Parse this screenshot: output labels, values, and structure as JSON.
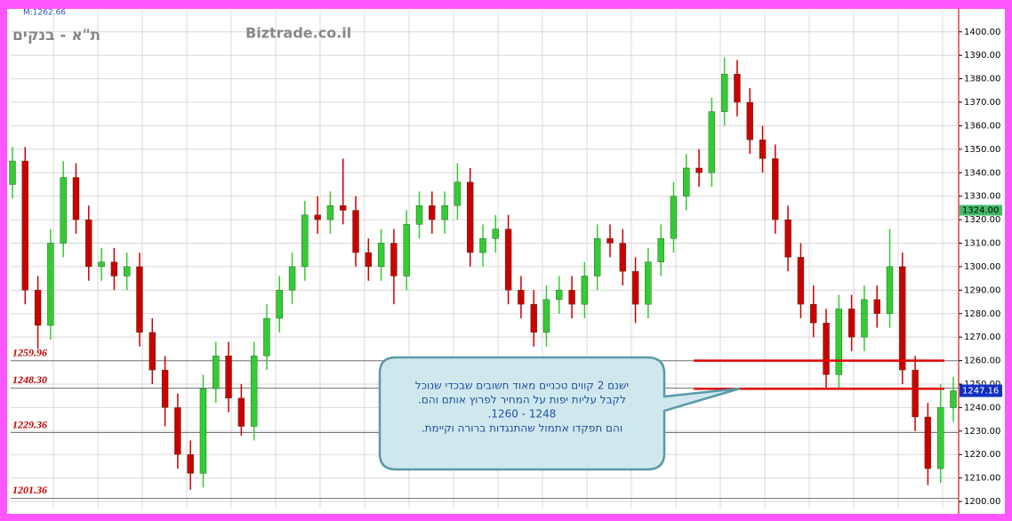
{
  "chart_data": {
    "type": "candlestick",
    "title": "ת\"א - בנקים",
    "source": "Biztrade.co.il",
    "max_label": "M:1262.66",
    "open": [
      1335,
      1345,
      1290,
      1275,
      1310,
      1338,
      1320,
      1300,
      1302,
      1296,
      1300,
      1272,
      1256,
      1240,
      1220,
      1212,
      1248,
      1262,
      1244,
      1232,
      1262,
      1278,
      1290,
      1300,
      1322,
      1320,
      1326,
      1324,
      1306,
      1300,
      1310,
      1296,
      1318,
      1326,
      1320,
      1326,
      1336,
      1306,
      1312,
      1316,
      1290,
      1284,
      1272,
      1286,
      1290,
      1284,
      1296,
      1312,
      1310,
      1298,
      1284,
      1302,
      1312,
      1330,
      1342,
      1340,
      1366,
      1382,
      1370,
      1354,
      1346,
      1320,
      1304,
      1284,
      1276,
      1254,
      1282,
      1270,
      1286,
      1280,
      1300,
      1256,
      1236,
      1214,
      1240
    ],
    "high": [
      1351,
      1351,
      1296,
      1316,
      1345,
      1344,
      1326,
      1308,
      1308,
      1306,
      1306,
      1278,
      1262,
      1246,
      1226,
      1254,
      1268,
      1268,
      1250,
      1268,
      1284,
      1296,
      1306,
      1328,
      1330,
      1332,
      1346,
      1330,
      1312,
      1316,
      1316,
      1324,
      1332,
      1332,
      1332,
      1344,
      1342,
      1318,
      1322,
      1322,
      1296,
      1290,
      1292,
      1296,
      1296,
      1302,
      1318,
      1318,
      1316,
      1304,
      1308,
      1318,
      1336,
      1348,
      1350,
      1372,
      1389,
      1388,
      1376,
      1360,
      1352,
      1326,
      1310,
      1292,
      1282,
      1288,
      1288,
      1292,
      1292,
      1316,
      1306,
      1262,
      1242,
      1250,
      1253
    ],
    "low": [
      1329,
      1284,
      1265,
      1269,
      1304,
      1314,
      1294,
      1294,
      1290,
      1290,
      1266,
      1250,
      1232,
      1214,
      1205,
      1206,
      1242,
      1238,
      1228,
      1226,
      1256,
      1272,
      1284,
      1294,
      1314,
      1314,
      1318,
      1300,
      1294,
      1294,
      1284,
      1290,
      1312,
      1314,
      1314,
      1320,
      1300,
      1300,
      1306,
      1284,
      1278,
      1266,
      1266,
      1280,
      1278,
      1278,
      1290,
      1304,
      1292,
      1276,
      1278,
      1296,
      1306,
      1324,
      1334,
      1334,
      1360,
      1364,
      1348,
      1340,
      1314,
      1298,
      1278,
      1270,
      1248,
      1248,
      1264,
      1264,
      1274,
      1274,
      1250,
      1230,
      1207,
      1208,
      1234
    ],
    "close": [
      1345,
      1290,
      1275,
      1310,
      1338,
      1320,
      1300,
      1302,
      1296,
      1300,
      1272,
      1256,
      1240,
      1220,
      1212,
      1248,
      1262,
      1244,
      1232,
      1262,
      1278,
      1290,
      1300,
      1322,
      1320,
      1326,
      1324,
      1306,
      1300,
      1310,
      1296,
      1318,
      1326,
      1320,
      1326,
      1336,
      1306,
      1312,
      1316,
      1290,
      1284,
      1272,
      1286,
      1290,
      1284,
      1296,
      1312,
      1310,
      1298,
      1284,
      1302,
      1312,
      1330,
      1342,
      1340,
      1366,
      1382,
      1370,
      1354,
      1346,
      1320,
      1304,
      1284,
      1276,
      1254,
      1282,
      1270,
      1286,
      1280,
      1300,
      1256,
      1236,
      1214,
      1240,
      1247.16
    ],
    "up_color": "#33cc33",
    "down_color": "#cc0000",
    "ylim": [
      1197,
      1409
    ],
    "yticks": [
      {
        "value": 1200,
        "label": "1200.00"
      },
      {
        "value": 1210,
        "label": "1210.00"
      },
      {
        "value": 1220,
        "label": "1220.00"
      },
      {
        "value": 1230,
        "label": "1230.00"
      },
      {
        "value": 1240,
        "label": "1240.00"
      },
      {
        "value": 1250,
        "label": "1250.00"
      },
      {
        "value": 1260,
        "label": "1260.00"
      },
      {
        "value": 1270,
        "label": "1270.00"
      },
      {
        "value": 1280,
        "label": "1280.00"
      },
      {
        "value": 1290,
        "label": "1290.00"
      },
      {
        "value": 1300,
        "label": "1300.00"
      },
      {
        "value": 1310,
        "label": "1310.00"
      },
      {
        "value": 1320,
        "label": "1320.00"
      },
      {
        "value": 1330,
        "label": "1330.00"
      },
      {
        "value": 1340,
        "label": "1340.00"
      },
      {
        "value": 1350,
        "label": "1350.00"
      },
      {
        "value": 1360,
        "label": "1360.00"
      },
      {
        "value": 1370,
        "label": "1370.00"
      },
      {
        "value": 1380,
        "label": "1380.00"
      },
      {
        "value": 1390,
        "label": "1390.00"
      },
      {
        "value": 1400,
        "label": "1400.00"
      }
    ],
    "grid": true,
    "levels": [
      1259.96,
      {
        "value": 1248.3,
        "label": "1248.30"
      },
      1229.36,
      1201.36
    ],
    "resistance_lines": [
      1260,
      1248
    ],
    "last_price": 1247.16,
    "marker_price": {
      "value": 1324,
      "label": "1324.00"
    },
    "callout": [
      "ישנם 2 קווים טכניים מאוד חשובים שבכדי שנוכל",
      "לקבל עליות יפות על המחיר לפרוץ אותם והם.",
      "1248 - 1260.",
      "והם תפקדו אתמול שהתנגדות ברורה וקיימת."
    ]
  }
}
